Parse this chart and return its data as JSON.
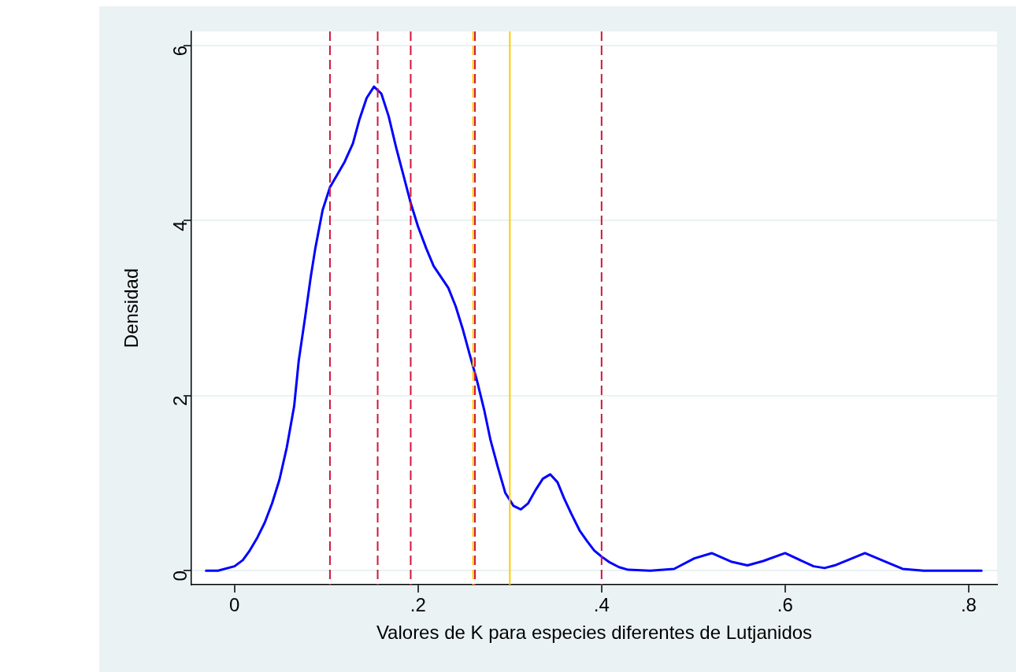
{
  "chart_data": {
    "type": "line",
    "xlabel": "Valores de K para especies diferentes de Lutjanidos",
    "ylabel": "Densidad",
    "xlim": [
      -0.047,
      0.831
    ],
    "ylim": [
      -0.16,
      6.16
    ],
    "xticks": [
      0,
      {
        "value": 0.2,
        "label": ".2"
      },
      {
        "value": 0.4,
        "label": ".4"
      },
      {
        "value": 0.6,
        "label": ".6"
      },
      {
        "value": 0.8,
        "label": ".8"
      }
    ],
    "yticks": [
      0,
      2,
      4,
      6
    ],
    "grid": "y",
    "legend": false,
    "marker": "none",
    "line_style": "solid",
    "series": [
      {
        "color": "#0000ff",
        "x": [
          -0.031,
          -0.018,
          0.0,
          0.009,
          0.016,
          0.025,
          0.033,
          0.041,
          0.049,
          0.057,
          0.065,
          0.07,
          0.077,
          0.083,
          0.088,
          0.096,
          0.104,
          0.12,
          0.129,
          0.136,
          0.144,
          0.152,
          0.16,
          0.168,
          0.176,
          0.184,
          0.192,
          0.2,
          0.209,
          0.217,
          0.233,
          0.241,
          0.249,
          0.256,
          0.264,
          0.272,
          0.279,
          0.287,
          0.295,
          0.304,
          0.312,
          0.32,
          0.328,
          0.336,
          0.344,
          0.352,
          0.359,
          0.367,
          0.376,
          0.384,
          0.392,
          0.4,
          0.408,
          0.419,
          0.429,
          0.453,
          0.479,
          0.501,
          0.52,
          0.542,
          0.559,
          0.576,
          0.6,
          0.631,
          0.643,
          0.654,
          0.687,
          0.712,
          0.728,
          0.751,
          0.814
        ],
        "values": [
          0,
          0,
          0.05,
          0.12,
          0.22,
          0.38,
          0.55,
          0.77,
          1.04,
          1.41,
          1.88,
          2.4,
          2.9,
          3.35,
          3.68,
          4.12,
          4.38,
          4.67,
          4.88,
          5.15,
          5.4,
          5.53,
          5.45,
          5.19,
          4.84,
          4.52,
          4.2,
          3.93,
          3.68,
          3.48,
          3.23,
          3.02,
          2.75,
          2.48,
          2.18,
          1.84,
          1.49,
          1.18,
          0.89,
          0.74,
          0.7,
          0.77,
          0.92,
          1.05,
          1.1,
          1.01,
          0.83,
          0.65,
          0.46,
          0.34,
          0.23,
          0.16,
          0.1,
          0.04,
          0.01,
          0,
          0.02,
          0.14,
          0.2,
          0.1,
          0.06,
          0.11,
          0.2,
          0.05,
          0.03,
          0.06,
          0.2,
          0.09,
          0.02,
          0,
          0
        ]
      }
    ],
    "ref_lines": [
      {
        "axis": "x",
        "value": 0.104,
        "color": "#d0163c",
        "line_style": "dashed"
      },
      {
        "axis": "x",
        "value": 0.156,
        "color": "#d0163c",
        "line_style": "dashed"
      },
      {
        "axis": "x",
        "value": 0.192,
        "color": "#d0163c",
        "line_style": "dashed"
      },
      {
        "axis": "x",
        "value": 0.26,
        "color": "#ffcc00",
        "line_style": "dashed"
      },
      {
        "axis": "x",
        "value": 0.262,
        "color": "#d0163c",
        "line_style": "dashed"
      },
      {
        "axis": "x",
        "value": 0.3,
        "color": "#ffcc00",
        "line_style": "solid"
      },
      {
        "axis": "x",
        "value": 0.4,
        "color": "#d0163c",
        "line_style": "dashed"
      }
    ]
  }
}
